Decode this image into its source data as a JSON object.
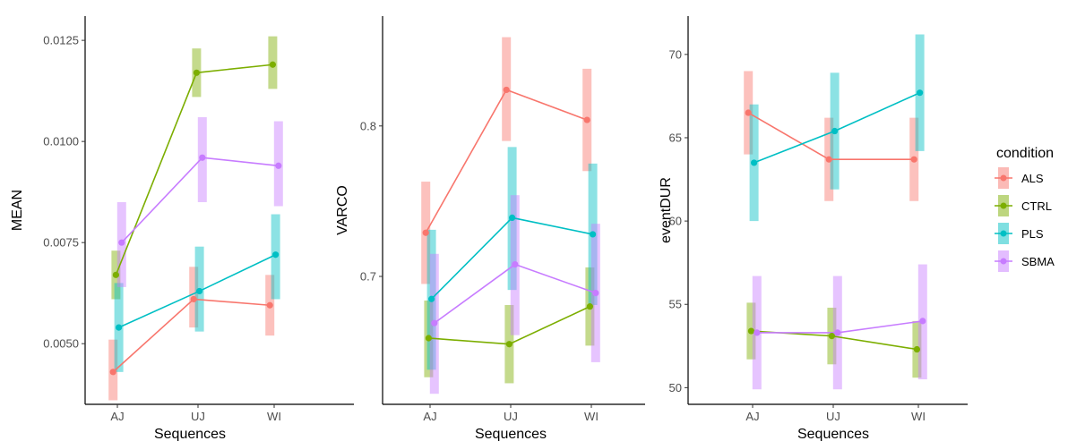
{
  "legend": {
    "title": "condition",
    "items": [
      {
        "name": "ALS",
        "color": "#F8766D"
      },
      {
        "name": "CTRL",
        "color": "#7CAE00"
      },
      {
        "name": "PLS",
        "color": "#00BFC4"
      },
      {
        "name": "SBMA",
        "color": "#C77CFF"
      }
    ]
  },
  "chart_data": [
    {
      "type": "line",
      "xlabel": "Sequences",
      "ylabel": "MEAN",
      "categories": [
        "AJ",
        "UJ",
        "WI"
      ],
      "ylim": [
        0.0035,
        0.0131
      ],
      "yticks": [
        0.005,
        0.0075,
        0.01,
        0.0125
      ],
      "ytick_labels": [
        "0.0050",
        "0.0075",
        "0.0100",
        "0.0125"
      ],
      "grid": false,
      "series": [
        {
          "name": "ALS",
          "values": [
            0.0043,
            0.0061,
            0.00595
          ],
          "lower": [
            0.0036,
            0.0054,
            0.0052
          ],
          "upper": [
            0.0051,
            0.0069,
            0.0067
          ]
        },
        {
          "name": "CTRL",
          "values": [
            0.0067,
            0.0117,
            0.0119
          ],
          "lower": [
            0.0061,
            0.0111,
            0.0113
          ],
          "upper": [
            0.0073,
            0.0123,
            0.0126
          ]
        },
        {
          "name": "PLS",
          "values": [
            0.0054,
            0.0063,
            0.0072
          ],
          "lower": [
            0.0043,
            0.0053,
            0.0061
          ],
          "upper": [
            0.0065,
            0.0074,
            0.0082
          ]
        },
        {
          "name": "SBMA",
          "values": [
            0.0075,
            0.0096,
            0.0094
          ],
          "lower": [
            0.0064,
            0.0085,
            0.0084
          ],
          "upper": [
            0.0085,
            0.0106,
            0.0105
          ]
        }
      ]
    },
    {
      "type": "line",
      "xlabel": "Sequences",
      "ylabel": "VARCO",
      "categories": [
        "AJ",
        "UJ",
        "WI"
      ],
      "ylim": [
        0.615,
        0.873
      ],
      "yticks": [
        0.7,
        0.8
      ],
      "ytick_labels": [
        "0.7",
        "0.8"
      ],
      "grid": false,
      "series": [
        {
          "name": "ALS",
          "values": [
            0.729,
            0.824,
            0.804
          ],
          "lower": [
            0.695,
            0.79,
            0.77
          ],
          "upper": [
            0.763,
            0.859,
            0.838
          ]
        },
        {
          "name": "CTRL",
          "values": [
            0.659,
            0.655,
            0.68
          ],
          "lower": [
            0.633,
            0.629,
            0.654
          ],
          "upper": [
            0.684,
            0.681,
            0.706
          ]
        },
        {
          "name": "PLS",
          "values": [
            0.685,
            0.739,
            0.728
          ],
          "lower": [
            0.638,
            0.691,
            0.681
          ],
          "upper": [
            0.731,
            0.786,
            0.775
          ]
        },
        {
          "name": "SBMA",
          "values": [
            0.669,
            0.708,
            0.689
          ],
          "lower": [
            0.622,
            0.661,
            0.643
          ],
          "upper": [
            0.715,
            0.754,
            0.735
          ]
        }
      ]
    },
    {
      "type": "line",
      "xlabel": "Sequences",
      "ylabel": "eventDUR",
      "categories": [
        "AJ",
        "UJ",
        "WI"
      ],
      "ylim": [
        49,
        72.3
      ],
      "yticks": [
        50,
        55,
        60,
        65,
        70
      ],
      "ytick_labels": [
        "50",
        "55",
        "60",
        "65",
        "70"
      ],
      "grid": false,
      "series": [
        {
          "name": "ALS",
          "values": [
            66.5,
            63.7,
            63.7
          ],
          "lower": [
            64.0,
            61.2,
            61.2
          ],
          "upper": [
            69.0,
            66.2,
            66.2
          ]
        },
        {
          "name": "CTRL",
          "values": [
            53.4,
            53.1,
            52.3
          ],
          "lower": [
            51.7,
            51.4,
            50.6
          ],
          "upper": [
            55.1,
            54.8,
            54.0
          ]
        },
        {
          "name": "PLS",
          "values": [
            63.5,
            65.4,
            67.7
          ],
          "lower": [
            60.0,
            61.9,
            64.2
          ],
          "upper": [
            67.0,
            68.9,
            71.2
          ]
        },
        {
          "name": "SBMA",
          "values": [
            53.3,
            53.3,
            54.0
          ],
          "lower": [
            49.9,
            49.9,
            50.5
          ],
          "upper": [
            56.7,
            56.7,
            57.4
          ]
        }
      ]
    }
  ]
}
